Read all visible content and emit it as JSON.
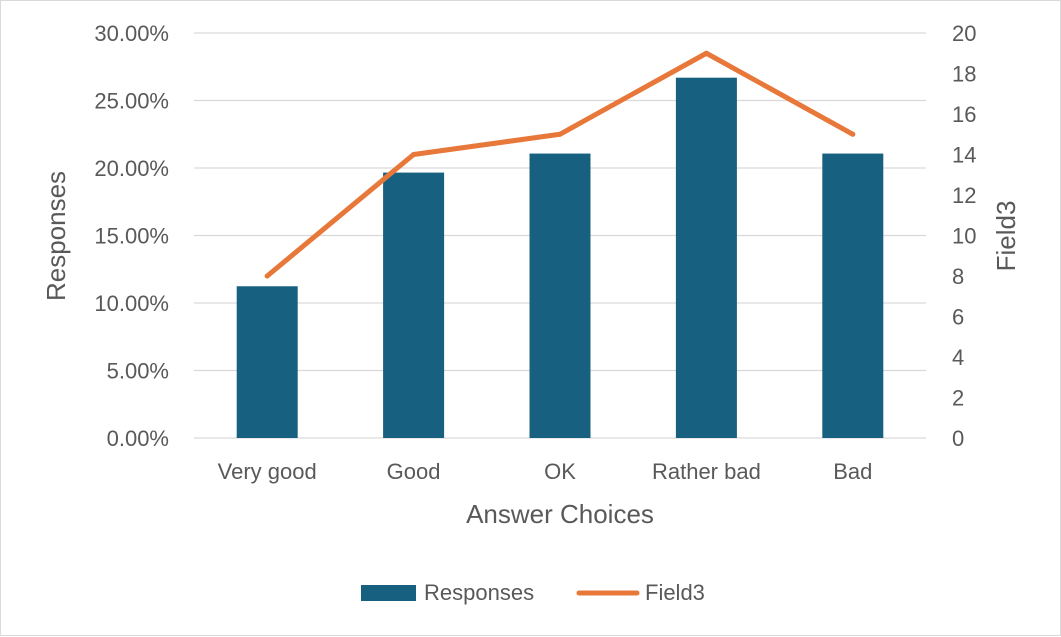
{
  "chart_data": {
    "type": "bar",
    "categories": [
      "Very good",
      "Good",
      "OK",
      "Rather bad",
      "Bad"
    ],
    "series": [
      {
        "name": "Responses",
        "type": "bar",
        "axis": "left",
        "color": "#17607f",
        "values": [
          0.1124,
          0.1966,
          0.2107,
          0.2669,
          0.2107
        ]
      },
      {
        "name": "Field3",
        "type": "line",
        "axis": "right",
        "color": "#e8773a",
        "values": [
          8,
          14,
          15,
          19,
          15
        ]
      }
    ],
    "xlabel": "Answer Choices",
    "ylabel": "Responses",
    "y2label": "Field3",
    "ylim": [
      0,
      0.3
    ],
    "y2lim": [
      0,
      20
    ],
    "yticks": [
      "0.00%",
      "5.00%",
      "10.00%",
      "15.00%",
      "20.00%",
      "25.00%",
      "30.00%"
    ],
    "y2ticks": [
      "0",
      "2",
      "4",
      "6",
      "8",
      "10",
      "12",
      "14",
      "16",
      "18",
      "20"
    ],
    "grid": true,
    "legend": "bottom",
    "legend_labels": [
      "Responses",
      "Field3"
    ],
    "gridline_color": "#d9d9d9",
    "text_color": "#595959"
  }
}
